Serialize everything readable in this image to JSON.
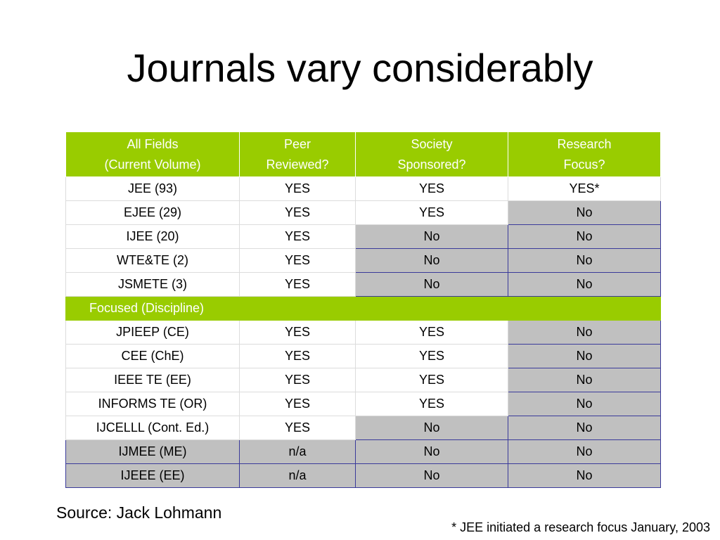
{
  "title": "Journals vary considerably",
  "table": {
    "headers": [
      [
        "All Fields",
        "(Current Volume)"
      ],
      [
        "Peer",
        "Reviewed?"
      ],
      [
        "Society",
        "Sponsored?"
      ],
      [
        "Research",
        "Focus?"
      ]
    ],
    "group1_rows": [
      {
        "cells": [
          "JEE (93)",
          "YES",
          "YES",
          "YES*"
        ],
        "gray": [
          false,
          false,
          false,
          false
        ]
      },
      {
        "cells": [
          "EJEE (29)",
          "YES",
          "YES",
          "No"
        ],
        "gray": [
          false,
          false,
          false,
          true
        ]
      },
      {
        "cells": [
          "IJEE (20)",
          "YES",
          "No",
          "No"
        ],
        "gray": [
          false,
          false,
          true,
          true
        ]
      },
      {
        "cells": [
          "WTE&TE (2)",
          "YES",
          "No",
          "No"
        ],
        "gray": [
          false,
          false,
          true,
          true
        ]
      },
      {
        "cells": [
          "JSMETE (3)",
          "YES",
          "No",
          "No"
        ],
        "gray": [
          false,
          false,
          true,
          true
        ]
      }
    ],
    "section_label": "Focused (Discipline)",
    "group2_rows": [
      {
        "cells": [
          "JPIEEP (CE)",
          "YES",
          "YES",
          "No"
        ],
        "gray": [
          false,
          false,
          false,
          true
        ]
      },
      {
        "cells": [
          "CEE (ChE)",
          "YES",
          "YES",
          "No"
        ],
        "gray": [
          false,
          false,
          false,
          true
        ]
      },
      {
        "cells": [
          "IEEE TE (EE)",
          "YES",
          "YES",
          "No"
        ],
        "gray": [
          false,
          false,
          false,
          true
        ]
      },
      {
        "cells": [
          "INFORMS TE (OR)",
          "YES",
          "YES",
          "No"
        ],
        "gray": [
          false,
          false,
          false,
          true
        ]
      },
      {
        "cells": [
          "IJCELLL (Cont. Ed.)",
          "YES",
          "No",
          "No"
        ],
        "gray": [
          false,
          false,
          true,
          true
        ]
      },
      {
        "cells": [
          "IJMEE (ME)",
          "n/a",
          "No",
          "No"
        ],
        "gray": [
          true,
          true,
          true,
          true
        ]
      },
      {
        "cells": [
          "IJEEE (EE)",
          "n/a",
          "No",
          "No"
        ],
        "gray": [
          true,
          true,
          true,
          true
        ]
      }
    ]
  },
  "source": "Source: Jack Lohmann",
  "footnote": "* JEE initiated a research focus January, 2003",
  "colors": {
    "header_green": "#99cc00",
    "gray_cell": "#c0c0c0",
    "gray_border": "#3a3a9a"
  }
}
